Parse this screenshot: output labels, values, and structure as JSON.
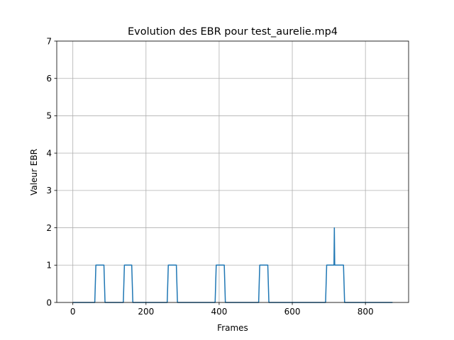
{
  "chart_data": {
    "type": "line",
    "title": "Evolution des EBR pour test_aurelie.mp4",
    "xlabel": "Frames",
    "ylabel": "Valeur EBR",
    "xlim": [
      -44,
      918
    ],
    "ylim": [
      0,
      7
    ],
    "xticks": [
      0,
      200,
      400,
      600,
      800
    ],
    "yticks": [
      0,
      1,
      2,
      3,
      4,
      5,
      6,
      7
    ],
    "grid": true,
    "colors": {
      "line": "#1f77b4",
      "grid": "#b0b0b0",
      "axes": "#000000"
    },
    "series": [
      {
        "x": [
          0,
          60,
          63,
          85,
          88,
          138,
          141,
          161,
          164,
          258,
          261,
          283,
          286,
          389,
          392,
          414,
          417,
          508,
          511,
          533,
          536,
          691,
          694,
          714,
          715,
          716,
          717,
          718,
          740,
          743,
          874
        ],
        "y": [
          0,
          0,
          1,
          1,
          0,
          0,
          1,
          1,
          0,
          0,
          1,
          1,
          0,
          0,
          1,
          1,
          0,
          0,
          1,
          1,
          0,
          0,
          1,
          1,
          2,
          1,
          1,
          1,
          1,
          0,
          0
        ]
      }
    ]
  }
}
